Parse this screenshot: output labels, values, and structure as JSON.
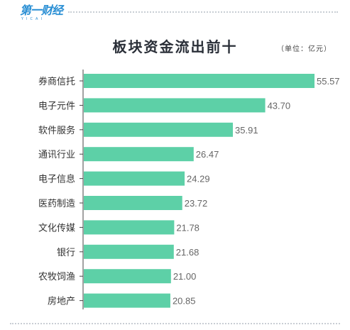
{
  "logo": {
    "main": "第一财经",
    "sub": "YICAI"
  },
  "colors": {
    "bar": "#5dd0a7",
    "axis": "#444444",
    "brand": "#2a8fd4"
  },
  "chart_data": {
    "type": "bar",
    "orientation": "horizontal",
    "title": "板块资金流出前十",
    "unit_note": "（单位：亿元）",
    "categories": [
      "券商信托",
      "电子元件",
      "软件服务",
      "通讯行业",
      "电子信息",
      "医药制造",
      "文化传媒",
      "银行",
      "农牧饲渔",
      "房地产"
    ],
    "values": [
      55.57,
      43.7,
      35.91,
      26.47,
      24.29,
      23.72,
      21.78,
      21.68,
      21.0,
      20.85
    ],
    "value_labels": [
      "55.57",
      "43.70",
      "35.91",
      "26.47",
      "24.29",
      "23.72",
      "21.78",
      "21.68",
      "21.00",
      "20.85"
    ],
    "xlim": [
      0,
      55.57
    ],
    "grid": false,
    "legend": "none"
  }
}
